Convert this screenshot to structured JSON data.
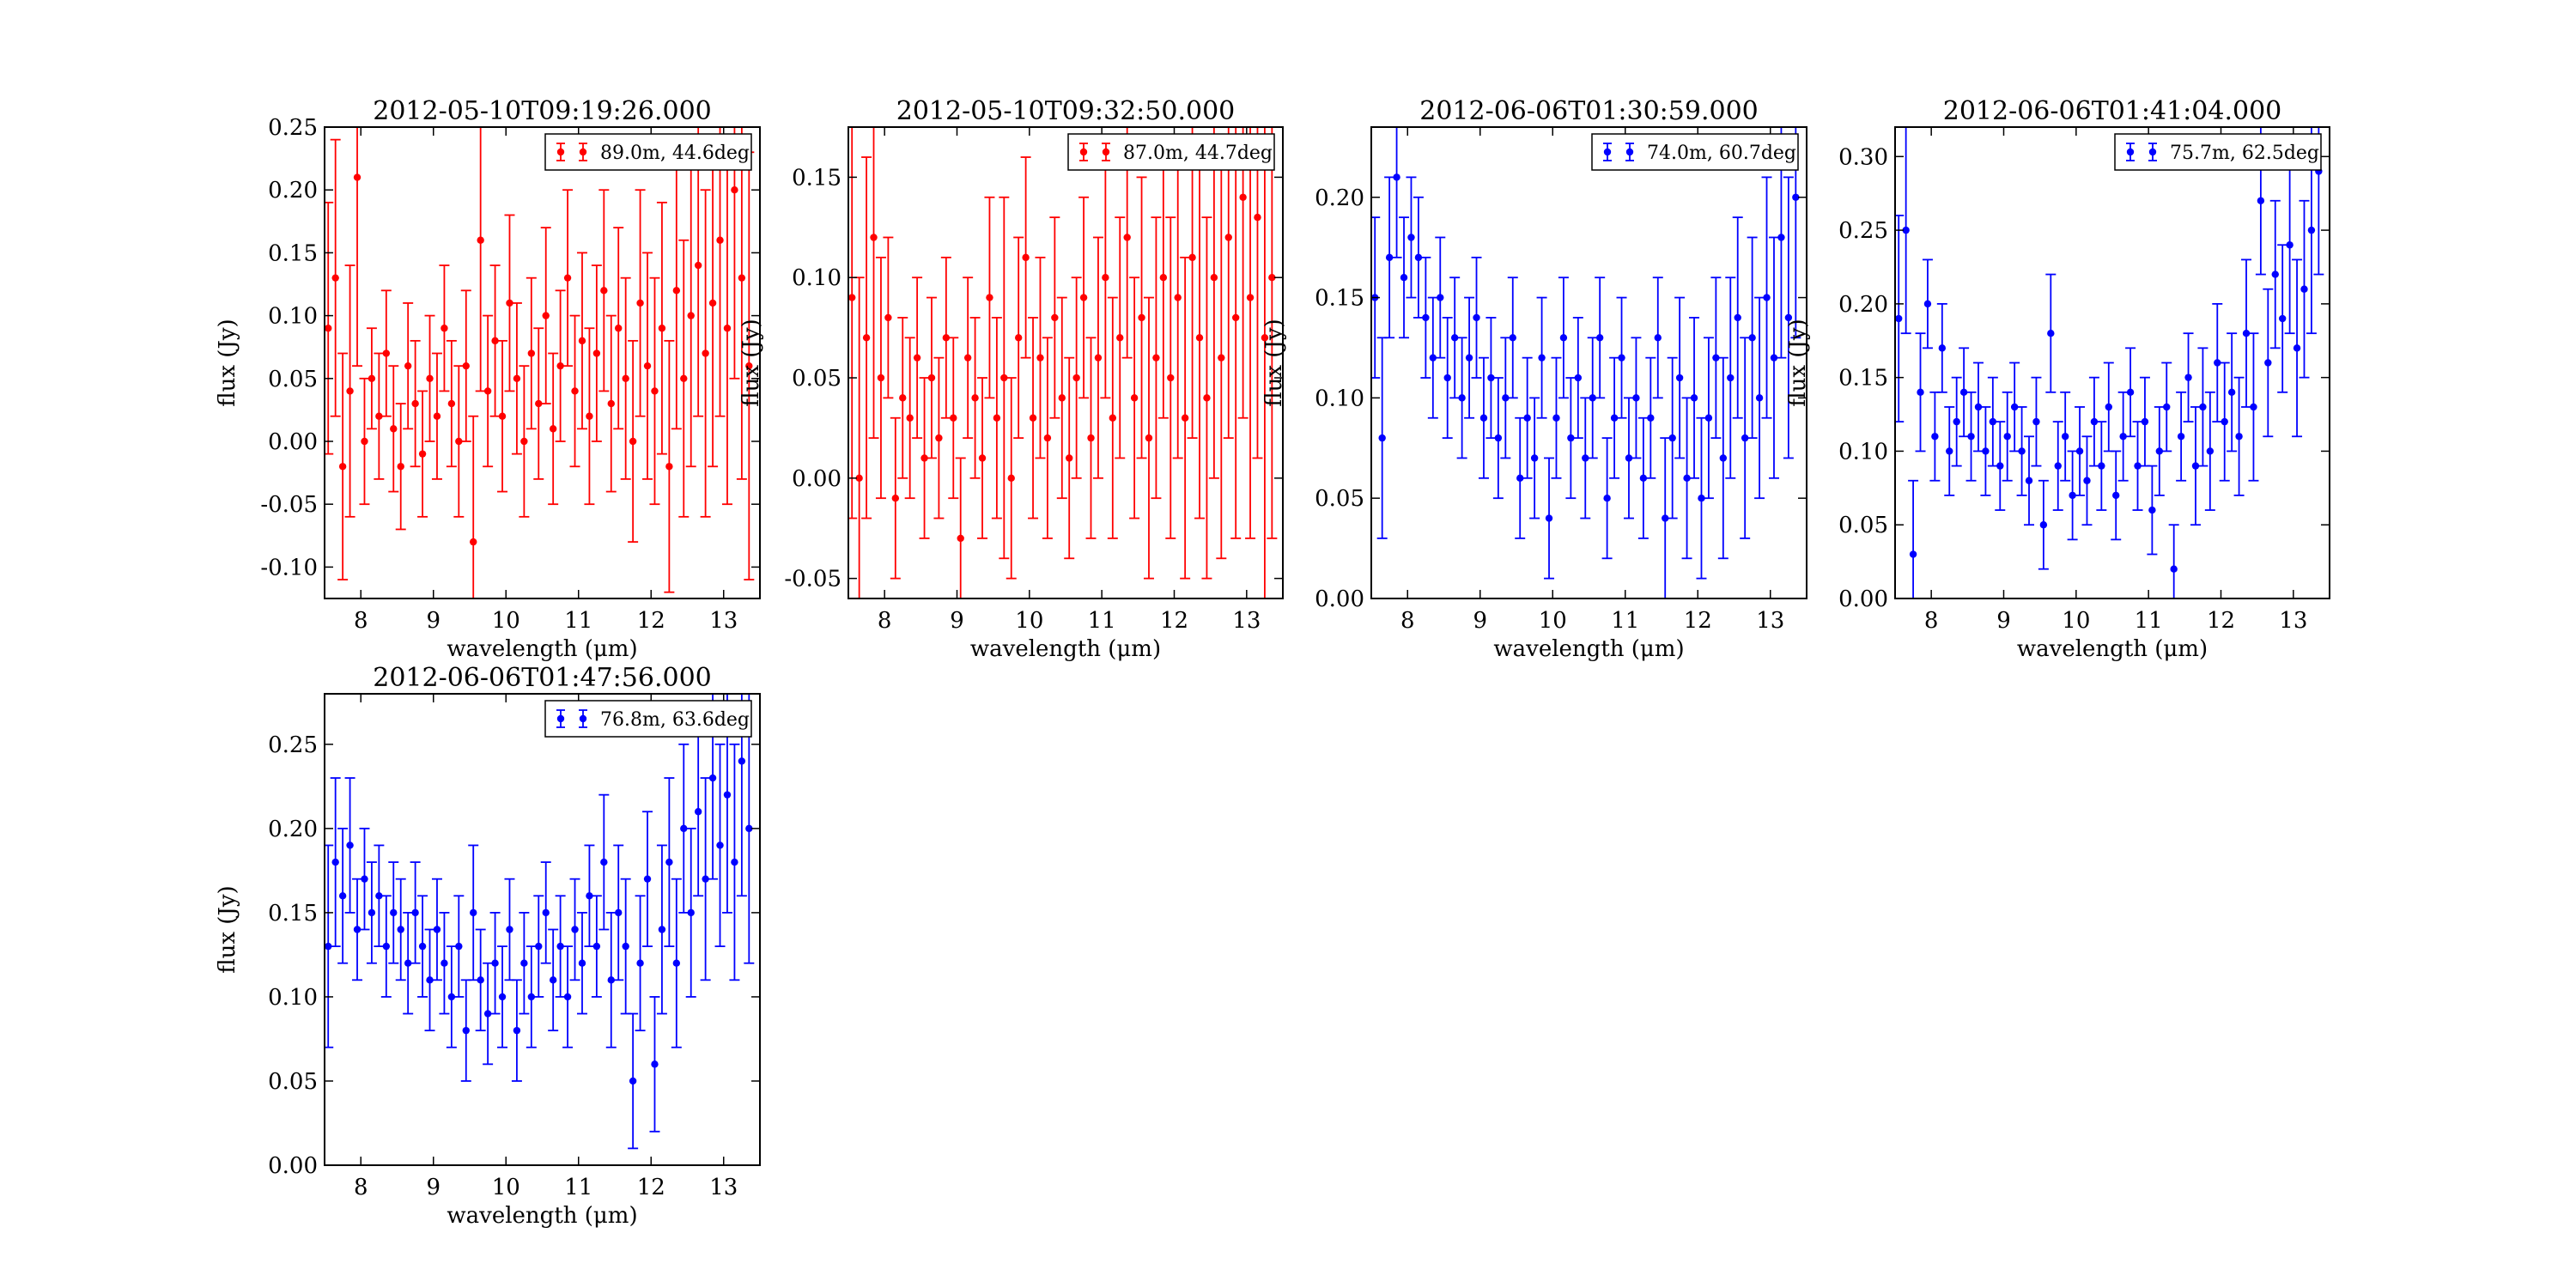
{
  "chart_data": [
    {
      "type": "scatter",
      "title": "2012-05-10T09:19:26.000",
      "xlabel": "wavelength (μm)",
      "ylabel": "flux (Jy)",
      "xlim": [
        7.5,
        13.5
      ],
      "ylim": [
        -0.125,
        0.25
      ],
      "xticks": [
        "8",
        "9",
        "10",
        "11",
        "12",
        "13"
      ],
      "yticks": [
        "-0.10",
        "-0.05",
        "0.00",
        "0.05",
        "0.10",
        "0.15",
        "0.20",
        "0.25"
      ],
      "grid": false,
      "legend": "top-right",
      "series": [
        {
          "name": "89.0m, 44.6deg",
          "color": "#ff0000",
          "x": [
            7.55,
            7.65,
            7.75,
            7.85,
            7.95,
            8.05,
            8.15,
            8.25,
            8.35,
            8.45,
            8.55,
            8.65,
            8.75,
            8.85,
            8.95,
            9.05,
            9.15,
            9.25,
            9.35,
            9.45,
            9.55,
            9.65,
            9.75,
            9.85,
            9.95,
            10.05,
            10.15,
            10.25,
            10.35,
            10.45,
            10.55,
            10.65,
            10.75,
            10.85,
            10.95,
            11.05,
            11.15,
            11.25,
            11.35,
            11.45,
            11.55,
            11.65,
            11.75,
            11.85,
            11.95,
            12.05,
            12.15,
            12.25,
            12.35,
            12.45,
            12.55,
            12.65,
            12.75,
            12.85,
            12.95,
            13.05,
            13.15,
            13.25,
            13.35
          ],
          "y": [
            0.09,
            0.13,
            -0.02,
            0.04,
            0.21,
            0.0,
            0.05,
            0.02,
            0.07,
            0.01,
            -0.02,
            0.06,
            0.03,
            -0.01,
            0.05,
            0.02,
            0.09,
            0.03,
            0.0,
            0.06,
            -0.08,
            0.16,
            0.04,
            0.08,
            0.02,
            0.11,
            0.05,
            0.0,
            0.07,
            0.03,
            0.1,
            0.01,
            0.06,
            0.13,
            0.04,
            0.08,
            0.02,
            0.07,
            0.12,
            0.03,
            0.09,
            0.05,
            0.0,
            0.11,
            0.06,
            0.04,
            0.09,
            -0.02,
            0.12,
            0.05,
            0.1,
            0.14,
            0.07,
            0.11,
            0.16,
            0.09,
            0.2,
            0.13,
            0.06
          ],
          "err": [
            0.1,
            0.11,
            0.09,
            0.1,
            0.15,
            0.05,
            0.04,
            0.05,
            0.05,
            0.05,
            0.05,
            0.05,
            0.05,
            0.05,
            0.05,
            0.05,
            0.05,
            0.05,
            0.06,
            0.06,
            0.1,
            0.12,
            0.06,
            0.06,
            0.06,
            0.07,
            0.06,
            0.06,
            0.06,
            0.06,
            0.07,
            0.06,
            0.06,
            0.07,
            0.06,
            0.07,
            0.07,
            0.07,
            0.08,
            0.07,
            0.08,
            0.08,
            0.08,
            0.09,
            0.09,
            0.09,
            0.1,
            0.1,
            0.11,
            0.11,
            0.12,
            0.12,
            0.13,
            0.13,
            0.14,
            0.14,
            0.15,
            0.16,
            0.17
          ]
        }
      ]
    },
    {
      "type": "scatter",
      "title": "2012-05-10T09:32:50.000",
      "xlabel": "wavelength (μm)",
      "ylabel": "flux (Jy)",
      "xlim": [
        7.5,
        13.5
      ],
      "ylim": [
        -0.06,
        0.175
      ],
      "xticks": [
        "8",
        "9",
        "10",
        "11",
        "12",
        "13"
      ],
      "yticks": [
        "-0.05",
        "0.00",
        "0.05",
        "0.10",
        "0.15"
      ],
      "grid": false,
      "legend": "top-right",
      "series": [
        {
          "name": "87.0m, 44.7deg",
          "color": "#ff0000",
          "x": [
            7.55,
            7.65,
            7.75,
            7.85,
            7.95,
            8.05,
            8.15,
            8.25,
            8.35,
            8.45,
            8.55,
            8.65,
            8.75,
            8.85,
            8.95,
            9.05,
            9.15,
            9.25,
            9.35,
            9.45,
            9.55,
            9.65,
            9.75,
            9.85,
            9.95,
            10.05,
            10.15,
            10.25,
            10.35,
            10.45,
            10.55,
            10.65,
            10.75,
            10.85,
            10.95,
            11.05,
            11.15,
            11.25,
            11.35,
            11.45,
            11.55,
            11.65,
            11.75,
            11.85,
            11.95,
            12.05,
            12.15,
            12.25,
            12.35,
            12.45,
            12.55,
            12.65,
            12.75,
            12.85,
            12.95,
            13.05,
            13.15,
            13.25,
            13.35
          ],
          "y": [
            0.09,
            0.0,
            0.07,
            0.12,
            0.05,
            0.08,
            -0.01,
            0.04,
            0.03,
            0.06,
            0.01,
            0.05,
            0.02,
            0.07,
            0.03,
            -0.03,
            0.06,
            0.04,
            0.01,
            0.09,
            0.03,
            0.05,
            0.0,
            0.07,
            0.11,
            0.03,
            0.06,
            0.02,
            0.08,
            0.04,
            0.01,
            0.05,
            0.09,
            0.02,
            0.06,
            0.1,
            0.03,
            0.07,
            0.12,
            0.04,
            0.08,
            0.02,
            0.06,
            0.1,
            0.05,
            0.09,
            0.03,
            0.11,
            0.07,
            0.04,
            0.1,
            0.06,
            0.12,
            0.08,
            0.14,
            0.09,
            0.13,
            0.07,
            0.1
          ],
          "err": [
            0.11,
            0.1,
            0.09,
            0.1,
            0.06,
            0.04,
            0.04,
            0.04,
            0.04,
            0.04,
            0.04,
            0.04,
            0.04,
            0.04,
            0.04,
            0.04,
            0.04,
            0.04,
            0.04,
            0.05,
            0.05,
            0.09,
            0.05,
            0.05,
            0.05,
            0.05,
            0.05,
            0.05,
            0.05,
            0.05,
            0.05,
            0.05,
            0.05,
            0.05,
            0.06,
            0.06,
            0.06,
            0.06,
            0.06,
            0.06,
            0.07,
            0.07,
            0.07,
            0.07,
            0.08,
            0.08,
            0.08,
            0.09,
            0.09,
            0.09,
            0.1,
            0.1,
            0.1,
            0.11,
            0.11,
            0.12,
            0.12,
            0.13,
            0.13
          ]
        }
      ]
    },
    {
      "type": "scatter",
      "title": "2012-06-06T01:30:59.000",
      "xlabel": "wavelength (μm)",
      "ylabel": "flux (Jy)",
      "xlim": [
        7.5,
        13.5
      ],
      "ylim": [
        0.0,
        0.235
      ],
      "xticks": [
        "8",
        "9",
        "10",
        "11",
        "12",
        "13"
      ],
      "yticks": [
        "0.00",
        "0.05",
        "0.10",
        "0.15",
        "0.20"
      ],
      "grid": false,
      "legend": "top-right",
      "series": [
        {
          "name": "74.0m, 60.7deg",
          "color": "#0000ff",
          "x": [
            7.55,
            7.65,
            7.75,
            7.85,
            7.95,
            8.05,
            8.15,
            8.25,
            8.35,
            8.45,
            8.55,
            8.65,
            8.75,
            8.85,
            8.95,
            9.05,
            9.15,
            9.25,
            9.35,
            9.45,
            9.55,
            9.65,
            9.75,
            9.85,
            9.95,
            10.05,
            10.15,
            10.25,
            10.35,
            10.45,
            10.55,
            10.65,
            10.75,
            10.85,
            10.95,
            11.05,
            11.15,
            11.25,
            11.35,
            11.45,
            11.55,
            11.65,
            11.75,
            11.85,
            11.95,
            12.05,
            12.15,
            12.25,
            12.35,
            12.45,
            12.55,
            12.65,
            12.75,
            12.85,
            12.95,
            13.05,
            13.15,
            13.25,
            13.35
          ],
          "y": [
            0.15,
            0.08,
            0.17,
            0.21,
            0.16,
            0.18,
            0.17,
            0.14,
            0.12,
            0.15,
            0.11,
            0.13,
            0.1,
            0.12,
            0.14,
            0.09,
            0.11,
            0.08,
            0.1,
            0.13,
            0.06,
            0.09,
            0.07,
            0.12,
            0.04,
            0.09,
            0.13,
            0.08,
            0.11,
            0.07,
            0.1,
            0.13,
            0.05,
            0.09,
            0.12,
            0.07,
            0.1,
            0.06,
            0.09,
            0.13,
            0.04,
            0.08,
            0.11,
            0.06,
            0.1,
            0.05,
            0.09,
            0.12,
            0.07,
            0.11,
            0.14,
            0.08,
            0.13,
            0.1,
            0.15,
            0.12,
            0.18,
            0.14,
            0.2
          ],
          "err": [
            0.04,
            0.05,
            0.04,
            0.04,
            0.03,
            0.03,
            0.03,
            0.03,
            0.03,
            0.03,
            0.03,
            0.03,
            0.03,
            0.03,
            0.03,
            0.03,
            0.03,
            0.03,
            0.03,
            0.03,
            0.03,
            0.03,
            0.03,
            0.03,
            0.03,
            0.03,
            0.03,
            0.03,
            0.03,
            0.03,
            0.03,
            0.03,
            0.03,
            0.03,
            0.03,
            0.03,
            0.03,
            0.03,
            0.03,
            0.03,
            0.04,
            0.04,
            0.04,
            0.04,
            0.04,
            0.04,
            0.04,
            0.04,
            0.05,
            0.05,
            0.05,
            0.05,
            0.05,
            0.05,
            0.06,
            0.06,
            0.06,
            0.07,
            0.07
          ]
        }
      ]
    },
    {
      "type": "scatter",
      "title": "2012-06-06T01:41:04.000",
      "xlabel": "wavelength (μm)",
      "ylabel": "flux (Jy)",
      "xlim": [
        7.5,
        13.5
      ],
      "ylim": [
        0.0,
        0.32
      ],
      "xticks": [
        "8",
        "9",
        "10",
        "11",
        "12",
        "13"
      ],
      "yticks": [
        "0.00",
        "0.05",
        "0.10",
        "0.15",
        "0.20",
        "0.25",
        "0.30"
      ],
      "grid": false,
      "legend": "top-right",
      "series": [
        {
          "name": "75.7m, 62.5deg",
          "color": "#0000ff",
          "x": [
            7.55,
            7.65,
            7.75,
            7.85,
            7.95,
            8.05,
            8.15,
            8.25,
            8.35,
            8.45,
            8.55,
            8.65,
            8.75,
            8.85,
            8.95,
            9.05,
            9.15,
            9.25,
            9.35,
            9.45,
            9.55,
            9.65,
            9.75,
            9.85,
            9.95,
            10.05,
            10.15,
            10.25,
            10.35,
            10.45,
            10.55,
            10.65,
            10.75,
            10.85,
            10.95,
            11.05,
            11.15,
            11.25,
            11.35,
            11.45,
            11.55,
            11.65,
            11.75,
            11.85,
            11.95,
            12.05,
            12.15,
            12.25,
            12.35,
            12.45,
            12.55,
            12.65,
            12.75,
            12.85,
            12.95,
            13.05,
            13.15,
            13.25,
            13.35
          ],
          "y": [
            0.19,
            0.25,
            0.03,
            0.14,
            0.2,
            0.11,
            0.17,
            0.1,
            0.12,
            0.14,
            0.11,
            0.13,
            0.1,
            0.12,
            0.09,
            0.11,
            0.13,
            0.1,
            0.08,
            0.12,
            0.05,
            0.18,
            0.09,
            0.11,
            0.07,
            0.1,
            0.08,
            0.12,
            0.09,
            0.13,
            0.07,
            0.11,
            0.14,
            0.09,
            0.12,
            0.06,
            0.1,
            0.13,
            0.02,
            0.11,
            0.15,
            0.09,
            0.13,
            0.1,
            0.16,
            0.12,
            0.14,
            0.11,
            0.18,
            0.13,
            0.27,
            0.16,
            0.22,
            0.19,
            0.24,
            0.17,
            0.21,
            0.25,
            0.29
          ],
          "err": [
            0.07,
            0.07,
            0.05,
            0.04,
            0.03,
            0.03,
            0.03,
            0.03,
            0.03,
            0.03,
            0.03,
            0.03,
            0.03,
            0.03,
            0.03,
            0.03,
            0.03,
            0.03,
            0.03,
            0.03,
            0.03,
            0.04,
            0.03,
            0.03,
            0.03,
            0.03,
            0.03,
            0.03,
            0.03,
            0.03,
            0.03,
            0.03,
            0.03,
            0.03,
            0.03,
            0.03,
            0.03,
            0.03,
            0.03,
            0.03,
            0.03,
            0.04,
            0.04,
            0.04,
            0.04,
            0.04,
            0.04,
            0.04,
            0.05,
            0.05,
            0.05,
            0.05,
            0.05,
            0.05,
            0.06,
            0.06,
            0.06,
            0.07,
            0.07
          ]
        }
      ]
    },
    {
      "type": "scatter",
      "title": "2012-06-06T01:47:56.000",
      "xlabel": "wavelength (μm)",
      "ylabel": "flux (Jy)",
      "xlim": [
        7.5,
        13.5
      ],
      "ylim": [
        0.0,
        0.28
      ],
      "xticks": [
        "8",
        "9",
        "10",
        "11",
        "12",
        "13"
      ],
      "yticks": [
        "0.00",
        "0.05",
        "0.10",
        "0.15",
        "0.20",
        "0.25"
      ],
      "grid": false,
      "legend": "top-right",
      "series": [
        {
          "name": "76.8m, 63.6deg",
          "color": "#0000ff",
          "x": [
            7.55,
            7.65,
            7.75,
            7.85,
            7.95,
            8.05,
            8.15,
            8.25,
            8.35,
            8.45,
            8.55,
            8.65,
            8.75,
            8.85,
            8.95,
            9.05,
            9.15,
            9.25,
            9.35,
            9.45,
            9.55,
            9.65,
            9.75,
            9.85,
            9.95,
            10.05,
            10.15,
            10.25,
            10.35,
            10.45,
            10.55,
            10.65,
            10.75,
            10.85,
            10.95,
            11.05,
            11.15,
            11.25,
            11.35,
            11.45,
            11.55,
            11.65,
            11.75,
            11.85,
            11.95,
            12.05,
            12.15,
            12.25,
            12.35,
            12.45,
            12.55,
            12.65,
            12.75,
            12.85,
            12.95,
            13.05,
            13.15,
            13.25,
            13.35
          ],
          "y": [
            0.13,
            0.18,
            0.16,
            0.19,
            0.14,
            0.17,
            0.15,
            0.16,
            0.13,
            0.15,
            0.14,
            0.12,
            0.15,
            0.13,
            0.11,
            0.14,
            0.12,
            0.1,
            0.13,
            0.08,
            0.15,
            0.11,
            0.09,
            0.12,
            0.1,
            0.14,
            0.08,
            0.12,
            0.1,
            0.13,
            0.15,
            0.11,
            0.13,
            0.1,
            0.14,
            0.12,
            0.16,
            0.13,
            0.18,
            0.11,
            0.15,
            0.13,
            0.05,
            0.12,
            0.17,
            0.06,
            0.14,
            0.18,
            0.12,
            0.2,
            0.15,
            0.21,
            0.17,
            0.23,
            0.19,
            0.22,
            0.18,
            0.24,
            0.2
          ],
          "err": [
            0.06,
            0.05,
            0.04,
            0.04,
            0.03,
            0.03,
            0.03,
            0.03,
            0.03,
            0.03,
            0.03,
            0.03,
            0.03,
            0.03,
            0.03,
            0.03,
            0.03,
            0.03,
            0.03,
            0.03,
            0.04,
            0.03,
            0.03,
            0.03,
            0.03,
            0.03,
            0.03,
            0.03,
            0.03,
            0.03,
            0.03,
            0.03,
            0.03,
            0.03,
            0.03,
            0.03,
            0.03,
            0.03,
            0.04,
            0.04,
            0.04,
            0.04,
            0.04,
            0.04,
            0.04,
            0.04,
            0.05,
            0.05,
            0.05,
            0.05,
            0.05,
            0.05,
            0.06,
            0.06,
            0.06,
            0.07,
            0.07,
            0.08,
            0.08
          ]
        }
      ]
    }
  ]
}
